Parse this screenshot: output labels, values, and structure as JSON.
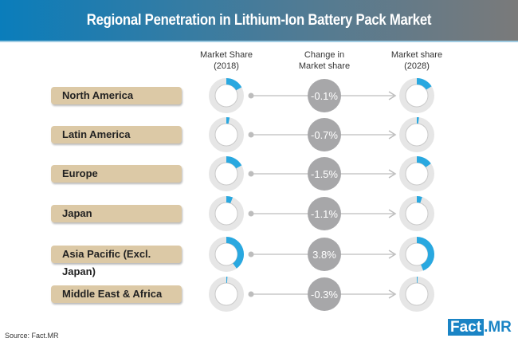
{
  "title": "Regional Penetration in Lithium-Ion Battery Pack Market",
  "columns": {
    "share_2018": "Market Share\n(2018)",
    "change": "Change in\nMarket share",
    "share_2028": "Market share\n(2028)"
  },
  "source": "Source: Fact.MR",
  "logo": {
    "part1": "Fact",
    "part2": ".MR"
  },
  "colors": {
    "accent": "#29a8e0",
    "ring": "#e6e6e6",
    "bubble": "#a7a7a9",
    "label_bg": "#dcc9a6"
  },
  "chart_data": {
    "type": "donut",
    "categories": [
      "North America",
      "Latin America",
      "Europe",
      "Japan",
      "Asia Pacific (Excl. Japan)",
      "Middle East & Africa"
    ],
    "share_2018_fraction_est": [
      0.17,
      0.03,
      0.17,
      0.06,
      0.4,
      0.01
    ],
    "share_2028_fraction_est": [
      0.16,
      0.02,
      0.15,
      0.05,
      0.44,
      0.007
    ],
    "change_labels": [
      "-0.1%",
      "-0.7%",
      "-1.5%",
      "-1.1%",
      "3.8%",
      "-0.3%"
    ]
  }
}
